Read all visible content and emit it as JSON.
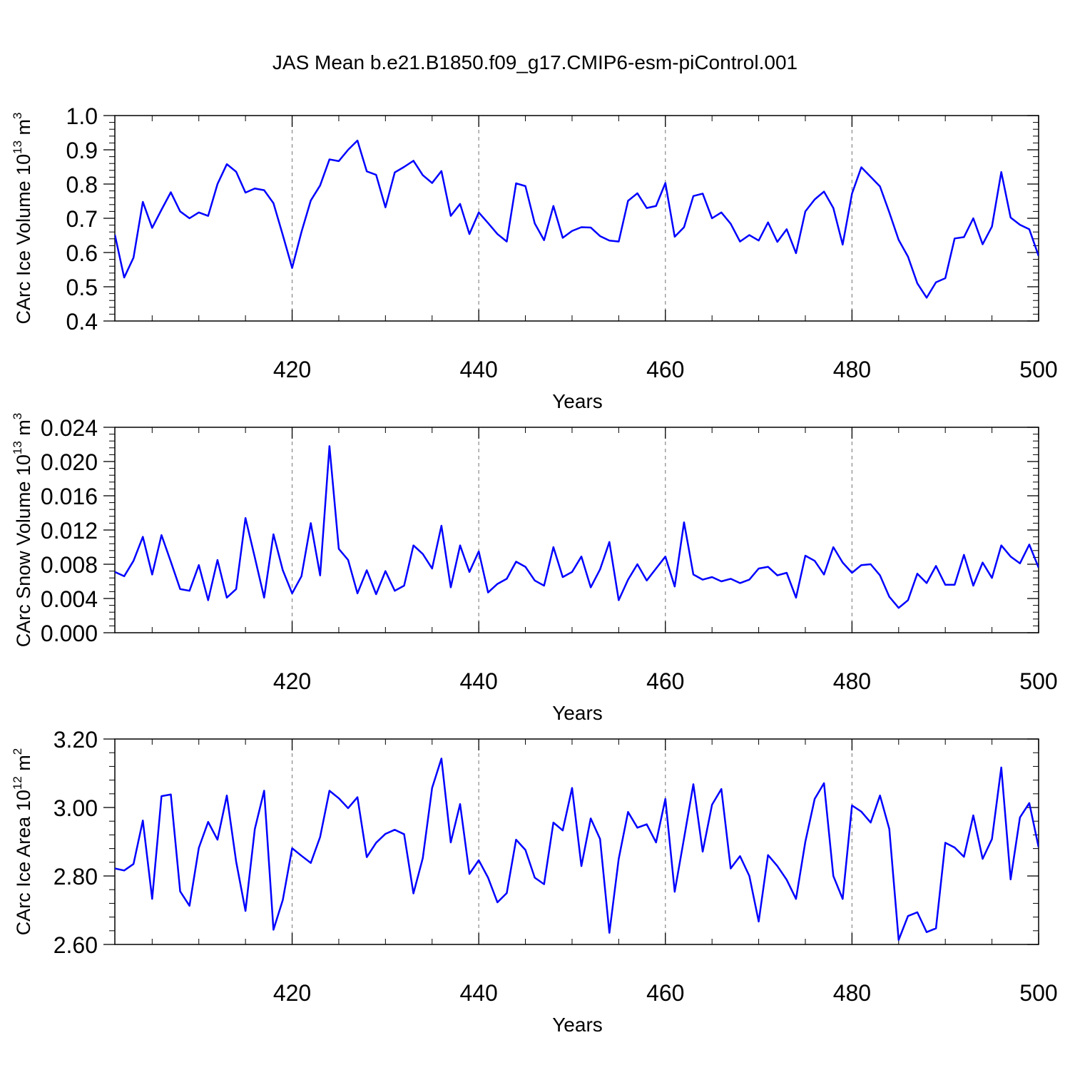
{
  "figure": {
    "title": "JAS Mean b.e21.B1850.f09_g17.CMIP6-esm-piControl.001"
  },
  "style": {
    "line_color": "#0000ff",
    "axis_color": "#000000",
    "grid_color": "#888888"
  },
  "chart_data": [
    {
      "type": "line",
      "xlabel": "Years",
      "ylabel_main": "CArc Ice Volume 10",
      "ylabel_exp": "13",
      "ylabel_unit": " m",
      "ylabel_unit_exp": "3",
      "xlim": [
        401,
        500
      ],
      "ylim": [
        0.4,
        1.0
      ],
      "x_ticks": [
        420,
        440,
        460,
        480,
        500
      ],
      "x_tick_labels": [
        "420",
        "440",
        "460",
        "480",
        "500"
      ],
      "y_ticks": [
        0.4,
        0.5,
        0.6,
        0.7,
        0.8,
        0.9,
        1.0
      ],
      "y_tick_labels": [
        "0.4",
        "0.5",
        "0.6",
        "0.7",
        "0.8",
        "0.9",
        "1.0"
      ],
      "y_minor_step": 0.02,
      "grid": "vertical dashed at major x ticks",
      "series": [
        {
          "x": [
            401,
            402,
            403,
            404,
            405,
            406,
            407,
            408,
            409,
            410,
            411,
            412,
            413,
            414,
            415,
            416,
            417,
            418,
            419,
            420,
            421,
            422,
            423,
            424,
            425,
            426,
            427,
            428,
            429,
            430,
            431,
            432,
            433,
            434,
            435,
            436,
            437,
            438,
            439,
            440,
            441,
            442,
            443,
            444,
            445,
            446,
            447,
            448,
            449,
            450,
            451,
            452,
            453,
            454,
            455,
            456,
            457,
            458,
            459,
            460,
            461,
            462,
            463,
            464,
            465,
            466,
            467,
            468,
            469,
            470,
            471,
            472,
            473,
            474,
            475,
            476,
            477,
            478,
            479,
            480,
            481,
            482,
            483,
            484,
            485,
            486,
            487,
            488,
            489,
            490,
            491,
            492,
            493,
            494,
            495,
            496,
            497,
            498,
            499,
            500
          ],
          "values": [
            0.652,
            0.527,
            0.585,
            0.748,
            0.672,
            0.725,
            0.776,
            0.72,
            0.7,
            0.717,
            0.707,
            0.8,
            0.858,
            0.836,
            0.775,
            0.787,
            0.782,
            0.744,
            0.651,
            0.555,
            0.66,
            0.752,
            0.796,
            0.872,
            0.867,
            0.9,
            0.927,
            0.837,
            0.827,
            0.732,
            0.834,
            0.85,
            0.868,
            0.826,
            0.803,
            0.838,
            0.707,
            0.742,
            0.654,
            0.717,
            0.686,
            0.654,
            0.632,
            0.802,
            0.794,
            0.685,
            0.636,
            0.736,
            0.643,
            0.663,
            0.674,
            0.673,
            0.648,
            0.635,
            0.632,
            0.751,
            0.773,
            0.73,
            0.736,
            0.803,
            0.646,
            0.674,
            0.765,
            0.772,
            0.7,
            0.717,
            0.684,
            0.632,
            0.651,
            0.635,
            0.688,
            0.631,
            0.668,
            0.598,
            0.72,
            0.755,
            0.778,
            0.73,
            0.623,
            0.772,
            0.849,
            0.821,
            0.793,
            0.717,
            0.637,
            0.588,
            0.51,
            0.468,
            0.513,
            0.525,
            0.641,
            0.645,
            0.7,
            0.624,
            0.676,
            0.835,
            0.702,
            0.681,
            0.668,
            0.59
          ]
        }
      ]
    },
    {
      "type": "line",
      "xlabel": "Years",
      "ylabel_main": "CArc Snow Volume 10",
      "ylabel_exp": "13",
      "ylabel_unit": " m",
      "ylabel_unit_exp": "3",
      "xlim": [
        401,
        500
      ],
      "ylim": [
        0.0,
        0.024
      ],
      "x_ticks": [
        420,
        440,
        460,
        480,
        500
      ],
      "x_tick_labels": [
        "420",
        "440",
        "460",
        "480",
        "500"
      ],
      "y_ticks": [
        0.0,
        0.004,
        0.008,
        0.012,
        0.016,
        0.02,
        0.024
      ],
      "y_tick_labels": [
        "0.000",
        "0.004",
        "0.008",
        "0.012",
        "0.016",
        "0.020",
        "0.024"
      ],
      "y_minor_step": 0.0008,
      "grid": "vertical dashed at major x ticks",
      "series": [
        {
          "x": [
            401,
            402,
            403,
            404,
            405,
            406,
            407,
            408,
            409,
            410,
            411,
            412,
            413,
            414,
            415,
            416,
            417,
            418,
            419,
            420,
            421,
            422,
            423,
            424,
            425,
            426,
            427,
            428,
            429,
            430,
            431,
            432,
            433,
            434,
            435,
            436,
            437,
            438,
            439,
            440,
            441,
            442,
            443,
            444,
            445,
            446,
            447,
            448,
            449,
            450,
            451,
            452,
            453,
            454,
            455,
            456,
            457,
            458,
            459,
            460,
            461,
            462,
            463,
            464,
            465,
            466,
            467,
            468,
            469,
            470,
            471,
            472,
            473,
            474,
            475,
            476,
            477,
            478,
            479,
            480,
            481,
            482,
            483,
            484,
            485,
            486,
            487,
            488,
            489,
            490,
            491,
            492,
            493,
            494,
            495,
            496,
            497,
            498,
            499,
            500
          ],
          "values": [
            0.0071,
            0.0066,
            0.0084,
            0.0112,
            0.0068,
            0.0114,
            0.0083,
            0.0051,
            0.0049,
            0.0079,
            0.0038,
            0.0085,
            0.0041,
            0.0051,
            0.0134,
            0.0088,
            0.0041,
            0.0115,
            0.0073,
            0.0046,
            0.0066,
            0.0128,
            0.0067,
            0.0218,
            0.0098,
            0.0085,
            0.0046,
            0.0073,
            0.0045,
            0.0072,
            0.0049,
            0.0055,
            0.0102,
            0.0092,
            0.0075,
            0.0125,
            0.0053,
            0.0102,
            0.0071,
            0.0095,
            0.0047,
            0.0057,
            0.0063,
            0.0083,
            0.0077,
            0.0061,
            0.0055,
            0.01,
            0.0065,
            0.0071,
            0.0089,
            0.0053,
            0.0074,
            0.0106,
            0.0038,
            0.0062,
            0.008,
            0.0061,
            0.0075,
            0.0089,
            0.0054,
            0.0129,
            0.0068,
            0.0062,
            0.0065,
            0.006,
            0.0063,
            0.0058,
            0.0062,
            0.0075,
            0.0077,
            0.0067,
            0.007,
            0.0041,
            0.009,
            0.0084,
            0.0068,
            0.01,
            0.0082,
            0.007,
            0.0079,
            0.008,
            0.0067,
            0.0042,
            0.0029,
            0.0038,
            0.0069,
            0.0058,
            0.0078,
            0.0056,
            0.0056,
            0.0091,
            0.0055,
            0.0082,
            0.0064,
            0.0102,
            0.0089,
            0.0081,
            0.0103,
            0.0076
          ]
        }
      ]
    },
    {
      "type": "line",
      "xlabel": "Years",
      "ylabel_main": "CArc Ice Area 10",
      "ylabel_exp": "12",
      "ylabel_unit": " m",
      "ylabel_unit_exp": "2",
      "xlim": [
        401,
        500
      ],
      "ylim": [
        2.6,
        3.2
      ],
      "x_ticks": [
        420,
        440,
        460,
        480,
        500
      ],
      "x_tick_labels": [
        "420",
        "440",
        "460",
        "480",
        "500"
      ],
      "y_ticks": [
        2.6,
        2.8,
        3.0,
        3.2
      ],
      "y_tick_labels": [
        "2.60",
        "2.80",
        "3.00",
        "3.20"
      ],
      "y_minor_step": 0.04,
      "grid": "vertical dashed at major x ticks",
      "series": [
        {
          "x": [
            401,
            402,
            403,
            404,
            405,
            406,
            407,
            408,
            409,
            410,
            411,
            412,
            413,
            414,
            415,
            416,
            417,
            418,
            419,
            420,
            421,
            422,
            423,
            424,
            425,
            426,
            427,
            428,
            429,
            430,
            431,
            432,
            433,
            434,
            435,
            436,
            437,
            438,
            439,
            440,
            441,
            442,
            443,
            444,
            445,
            446,
            447,
            448,
            449,
            450,
            451,
            452,
            453,
            454,
            455,
            456,
            457,
            458,
            459,
            460,
            461,
            462,
            463,
            464,
            465,
            466,
            467,
            468,
            469,
            470,
            471,
            472,
            473,
            474,
            475,
            476,
            477,
            478,
            479,
            480,
            481,
            482,
            483,
            484,
            485,
            486,
            487,
            488,
            489,
            490,
            491,
            492,
            493,
            494,
            495,
            496,
            497,
            498,
            499,
            500
          ],
          "values": [
            2.822,
            2.816,
            2.835,
            2.962,
            2.733,
            3.033,
            3.038,
            2.755,
            2.713,
            2.882,
            2.958,
            2.906,
            3.035,
            2.842,
            2.698,
            2.937,
            3.049,
            2.643,
            2.73,
            2.881,
            2.859,
            2.838,
            2.914,
            3.049,
            3.027,
            2.998,
            3.03,
            2.855,
            2.897,
            2.923,
            2.935,
            2.922,
            2.749,
            2.852,
            3.057,
            3.143,
            2.898,
            3.01,
            2.806,
            2.846,
            2.795,
            2.723,
            2.75,
            2.906,
            2.876,
            2.795,
            2.776,
            2.956,
            2.933,
            3.057,
            2.829,
            2.968,
            2.908,
            2.634,
            2.85,
            2.987,
            2.941,
            2.951,
            2.898,
            3.025,
            2.754,
            2.91,
            3.068,
            2.871,
            3.008,
            3.054,
            2.822,
            2.858,
            2.8,
            2.667,
            2.861,
            2.829,
            2.789,
            2.733,
            2.9,
            3.025,
            3.071,
            2.8,
            2.733,
            3.006,
            2.988,
            2.956,
            3.035,
            2.937,
            2.613,
            2.683,
            2.694,
            2.636,
            2.647,
            2.897,
            2.883,
            2.856,
            2.977,
            2.85,
            2.908,
            3.117,
            2.79,
            2.971,
            3.013,
            2.884
          ]
        }
      ]
    }
  ]
}
